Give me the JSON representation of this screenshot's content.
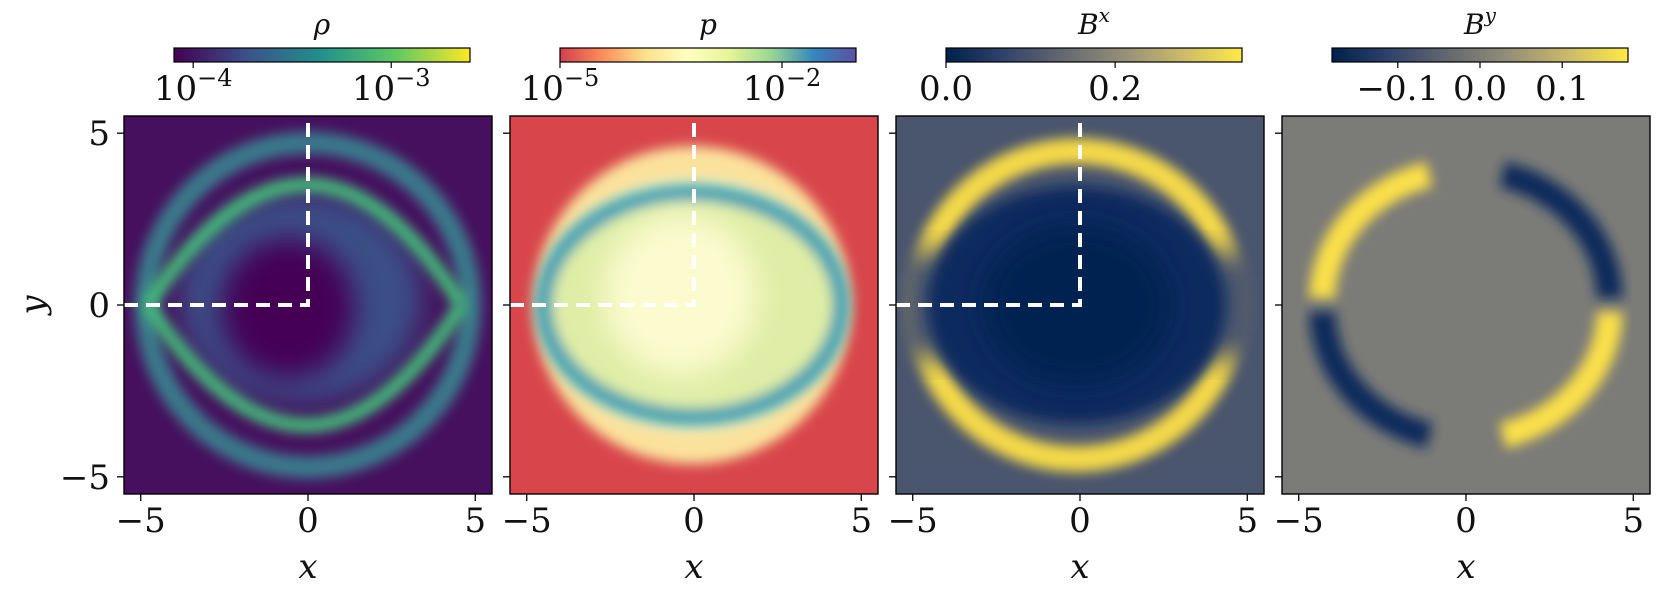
{
  "chart_data": [
    {
      "type": "heatmap",
      "colorbar_title": "ρ",
      "colormap": "viridis",
      "color_scale": "log",
      "colorbar_range": [
        8e-05,
        0.0025
      ],
      "colorbar_ticks": [
        {
          "value": 0.0001,
          "base": "10",
          "exp": "−4"
        },
        {
          "value": 0.001,
          "base": "10",
          "exp": "−3"
        }
      ],
      "background_level": 0.0001,
      "xlabel": "x",
      "ylabel": "y",
      "xlim": [
        -5.5,
        5.5
      ],
      "ylim": [
        -5.5,
        5.5
      ],
      "xticks": [
        {
          "value": -5,
          "label": "−5"
        },
        {
          "value": 0,
          "label": "0"
        },
        {
          "value": 5,
          "label": "5"
        }
      ],
      "yticks": [
        {
          "value": 5,
          "label": "5"
        },
        {
          "value": 0,
          "label": "0"
        },
        {
          "value": -5,
          "label": "−5"
        }
      ],
      "dashed_guides": {
        "color": "#ffffff",
        "from": [
          -5.5,
          0
        ],
        "corner": [
          0,
          0
        ],
        "to": [
          0,
          5.5
        ]
      }
    },
    {
      "type": "heatmap",
      "colorbar_title": "p",
      "colormap": "Spectral",
      "color_scale": "log",
      "colorbar_range": [
        1e-05,
        0.1
      ],
      "colorbar_ticks": [
        {
          "value": 1e-05,
          "base": "10",
          "exp": "−5"
        },
        {
          "value": 0.01,
          "base": "10",
          "exp": "−2"
        }
      ],
      "background_level": 2e-05,
      "xlabel": "x",
      "ylabel": "",
      "xlim": [
        -5.5,
        5.5
      ],
      "ylim": [
        -5.5,
        5.5
      ],
      "xticks": [
        {
          "value": -5,
          "label": "−5"
        },
        {
          "value": 0,
          "label": "0"
        },
        {
          "value": 5,
          "label": "5"
        }
      ],
      "dashed_guides": {
        "color": "#ffffff",
        "from": [
          -5.5,
          0
        ],
        "corner": [
          0,
          0
        ],
        "to": [
          0,
          5.5
        ]
      }
    },
    {
      "type": "heatmap",
      "colorbar_title": "B",
      "colorbar_title_sup": "x",
      "colormap": "cividis",
      "color_scale": "linear",
      "colorbar_range": [
        0,
        0.35
      ],
      "colorbar_ticks": [
        {
          "value": 0.0,
          "label": "0.0"
        },
        {
          "value": 0.2,
          "label": "0.2"
        }
      ],
      "background_level": 0.1,
      "xlabel": "x",
      "ylabel": "",
      "xlim": [
        -5.5,
        5.5
      ],
      "ylim": [
        -5.5,
        5.5
      ],
      "xticks": [
        {
          "value": -5,
          "label": "−5"
        },
        {
          "value": 0,
          "label": "0"
        },
        {
          "value": 5,
          "label": "5"
        }
      ],
      "dashed_guides": {
        "color": "#ffffff",
        "from": [
          -5.5,
          0
        ],
        "corner": [
          0,
          0
        ],
        "to": [
          0,
          5.5
        ]
      }
    },
    {
      "type": "heatmap",
      "colorbar_title": "B",
      "colorbar_title_sup": "y",
      "colormap": "cividis",
      "color_scale": "linear",
      "colorbar_range": [
        -0.18,
        0.18
      ],
      "colorbar_ticks": [
        {
          "value": -0.1,
          "label": "−0.1"
        },
        {
          "value": 0.0,
          "label": "0.0"
        },
        {
          "value": 0.1,
          "label": "0.1"
        }
      ],
      "background_level": 0.0,
      "xlabel": "x",
      "ylabel": "",
      "xlim": [
        -5.5,
        5.5
      ],
      "ylim": [
        -5.5,
        5.5
      ],
      "xticks": [
        {
          "value": -5,
          "label": "−5"
        },
        {
          "value": 0,
          "label": "0"
        },
        {
          "value": 5,
          "label": "5"
        }
      ]
    }
  ]
}
